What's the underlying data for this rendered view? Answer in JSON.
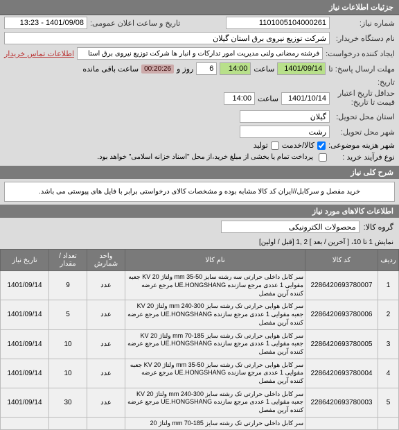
{
  "header": {
    "title": "جزئیات اطلاعات نیاز"
  },
  "form": {
    "number_label": "شماره نیاز:",
    "number": "1101005104000261",
    "date_label": "تاریخ و ساعت اعلان عمومی:",
    "date": "1401/09/08 - 13:23",
    "device_label": "نام دستگاه خریدار:",
    "device": "شرکت توزیع نیروی برق استان گیلان",
    "creator_label": "ایجاد کننده درخواست:",
    "creator": "فرشته رمضانی ولنی مدیریت امور تدارکات و انبار ها شرکت توزیع نیروی برق استا",
    "notice": "اطلاعات تماس خریدار",
    "deadline_label": "مهلت ارسال پاسخ: تا",
    "deadline_date": "1401/09/14",
    "time_lbl": "ساعت",
    "deadline_time": "14:00",
    "days": "6",
    "days_lbl": "روز و",
    "counter": "00:20:26",
    "remain_lbl": "ساعت باقی مانده",
    "t_label": "تاریخ:",
    "valid_label": "حداقل تاریخ اعتبار",
    "valid_label2": "قیمت تا تاریخ:",
    "valid_date": "1401/10/14",
    "valid_time": "14:00",
    "state_label": "استان محل تحویل:",
    "state": "گیلان",
    "city_label": "شهر محل تحویل:",
    "city": "رشت",
    "topic_label": "شهر هزینه موضوعی:",
    "cb_goods": "کالا/خدمت",
    "cb_prod": "تولید",
    "pay_label": "نوع فرآیند خرید :",
    "pay_opt1": "پرداخت تمام یا بخشی از مبلغ خرید،از محل \"اسناد خزانه اسلامی\" خواهد بود."
  },
  "desc": {
    "header": "شرح کلی نیاز",
    "text": "خرید مفصل و سرکابل//ایران کد کالا مشابه بوده و مشخصات کالای درخواستی برابر با فایل های پیوستی می باشد."
  },
  "items": {
    "header": "اطلاعات کالاهای مورد نیاز",
    "group_label": "گروه کالا:",
    "group": "محصولات الکترونیکی",
    "pager_text": "نمایش 1 تا 10، [ آخرین / بعد ] 2 ,1 [قبل / اولین]",
    "cols": {
      "idx": "ردیف",
      "code": "کد کالا",
      "name": "نام کالا",
      "unit": "واحد شمارش",
      "qty": "تعداد / مقدار",
      "date": "تاریخ نیاز"
    },
    "rows": [
      {
        "idx": "1",
        "code": "2286420693780007",
        "name": "سر کابل داخلی حرارتی سه رشته سایز mm 35-50 ولتاژ 20 KV جعبه مقوایی 1 عددی مرجع سازنده UE.HONGSHANG مرجع عرضه کننده آرین مفصل",
        "unit": "عدد",
        "qty": "9",
        "date": "1401/09/14"
      },
      {
        "idx": "2",
        "code": "2286420693780006",
        "name": "سر کابل هوایی حرارتی تک رشته سایز mm 240-300 ولتاژ 20 KV جعبه مقوایی 1 عددی مرجع سازنده UE.HONGSHANG مرجع عرضه کننده آرین مفصل",
        "unit": "عدد",
        "qty": "5",
        "date": "1401/09/14"
      },
      {
        "idx": "3",
        "code": "2286420693780005",
        "name": "سر کابل هوایی حرارتی تک رشته سایز mm 70-185 ولتاژ 20 KV جعبه مقوایی 1 عددی مرجع سازنده UE.HONGSHANG مرجع عرضه کننده آرین مفصل",
        "unit": "عدد",
        "qty": "10",
        "date": "1401/09/14"
      },
      {
        "idx": "4",
        "code": "2286420693780004",
        "name": "سر کابل هوایی حرارتی تک رشته سایز mm 35-50 ولتاژ KV 20 جعبه مقوایی 1 عددی مرجع سازنده UE.HONGSHANG مرجع عرضه کننده آرین مفصل",
        "unit": "عدد",
        "qty": "10",
        "date": "1401/09/14"
      },
      {
        "idx": "5",
        "code": "2286420693780003",
        "name": "سر کابل داخلی حرارتی تک رشته سایز mm 240-300 ولتاژ 20 KV جعبه مقوایی 1 عددی مرجع سازنده UE.HONGSHANG مرجع عرضه کننده آرین مفصل",
        "unit": "عدد",
        "qty": "30",
        "date": "1401/09/14"
      },
      {
        "idx": "",
        "code": "",
        "name": "سر کابل داخلی حرارتی تک رشته سایز mm 70-185 ولتاژ 20",
        "unit": "",
        "qty": "",
        "date": ""
      }
    ]
  }
}
